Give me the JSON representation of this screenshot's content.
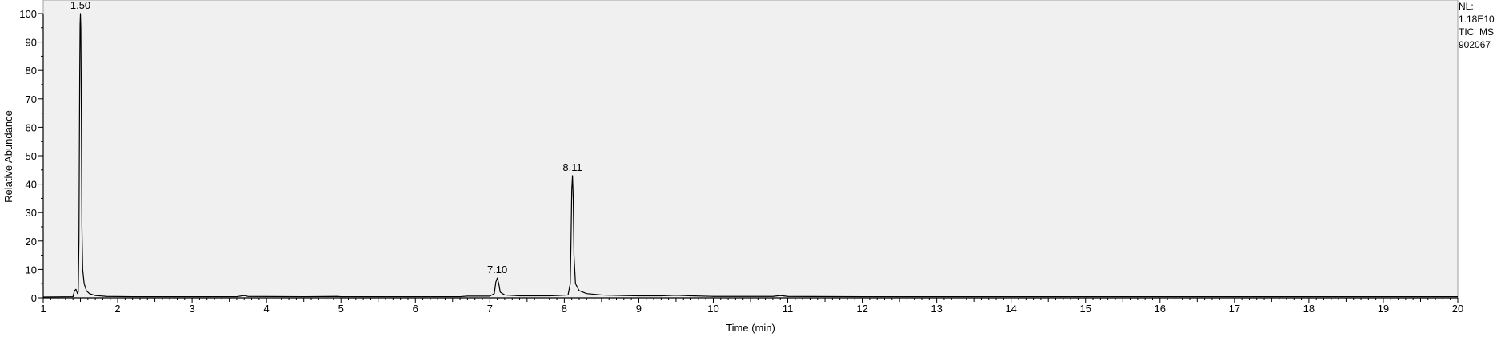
{
  "chart_data": {
    "type": "line",
    "title": "",
    "xlabel": "Time (min)",
    "ylabel": "Relative Abundance",
    "xlim": [
      1,
      20
    ],
    "ylim": [
      0,
      100
    ],
    "x_ticks": [
      1,
      2,
      3,
      4,
      5,
      6,
      7,
      8,
      9,
      10,
      11,
      12,
      13,
      14,
      15,
      16,
      17,
      18,
      19,
      20
    ],
    "x_tick_labels": [
      "1",
      "2",
      "3",
      "4",
      "5",
      "6",
      "7",
      "8",
      "9",
      "10",
      "11",
      "12",
      "13",
      "14",
      "15",
      "16",
      "17",
      "18",
      "19",
      "20"
    ],
    "y_ticks": [
      0,
      10,
      20,
      30,
      40,
      50,
      60,
      70,
      80,
      90,
      100
    ],
    "y_tick_labels": [
      "0",
      "10",
      "20",
      "30",
      "40",
      "50",
      "60",
      "70",
      "80",
      "90",
      "100"
    ],
    "grid": false,
    "info_label": [
      "NL:",
      "1.18E10",
      "TIC  MS",
      "902067"
    ],
    "peak_labels": [
      {
        "x": 1.5,
        "y": 100,
        "text": "1.50"
      },
      {
        "x": 7.1,
        "y": 7,
        "text": "7.10"
      },
      {
        "x": 8.11,
        "y": 43,
        "text": "8.11"
      }
    ],
    "series": [
      {
        "values": [
          [
            1.0,
            0.3
          ],
          [
            1.4,
            0.4
          ],
          [
            1.42,
            2.5
          ],
          [
            1.44,
            3.0
          ],
          [
            1.46,
            1.5
          ],
          [
            1.47,
            2.0
          ],
          [
            1.48,
            20
          ],
          [
            1.49,
            78
          ],
          [
            1.495,
            96
          ],
          [
            1.5,
            100
          ],
          [
            1.505,
            95
          ],
          [
            1.51,
            75
          ],
          [
            1.52,
            25
          ],
          [
            1.53,
            10
          ],
          [
            1.55,
            5
          ],
          [
            1.58,
            2.5
          ],
          [
            1.62,
            1.5
          ],
          [
            1.7,
            0.8
          ],
          [
            1.85,
            0.5
          ],
          [
            2.2,
            0.4
          ],
          [
            3.0,
            0.4
          ],
          [
            3.6,
            0.4
          ],
          [
            3.7,
            0.8
          ],
          [
            3.75,
            0.5
          ],
          [
            4.5,
            0.4
          ],
          [
            4.95,
            0.5
          ],
          [
            5.0,
            0.4
          ],
          [
            6.0,
            0.4
          ],
          [
            6.6,
            0.4
          ],
          [
            6.7,
            0.6
          ],
          [
            7.0,
            0.6
          ],
          [
            7.06,
            1.5
          ],
          [
            7.08,
            5.5
          ],
          [
            7.1,
            7.0
          ],
          [
            7.12,
            5.0
          ],
          [
            7.14,
            2.0
          ],
          [
            7.2,
            1.0
          ],
          [
            7.4,
            0.7
          ],
          [
            7.8,
            0.7
          ],
          [
            7.9,
            0.8
          ],
          [
            8.05,
            1.0
          ],
          [
            8.08,
            5
          ],
          [
            8.09,
            20
          ],
          [
            8.1,
            38
          ],
          [
            8.11,
            43
          ],
          [
            8.12,
            35
          ],
          [
            8.13,
            15
          ],
          [
            8.15,
            5
          ],
          [
            8.2,
            2.5
          ],
          [
            8.3,
            1.5
          ],
          [
            8.5,
            1.0
          ],
          [
            8.8,
            0.8
          ],
          [
            9.0,
            0.7
          ],
          [
            9.3,
            0.7
          ],
          [
            9.5,
            0.9
          ],
          [
            9.7,
            0.7
          ],
          [
            10.0,
            0.5
          ],
          [
            10.8,
            0.5
          ],
          [
            10.9,
            0.8
          ],
          [
            11.0,
            0.5
          ],
          [
            12.0,
            0.4
          ],
          [
            14.0,
            0.4
          ],
          [
            16.0,
            0.4
          ],
          [
            18.0,
            0.4
          ],
          [
            20.0,
            0.4
          ]
        ]
      }
    ]
  }
}
